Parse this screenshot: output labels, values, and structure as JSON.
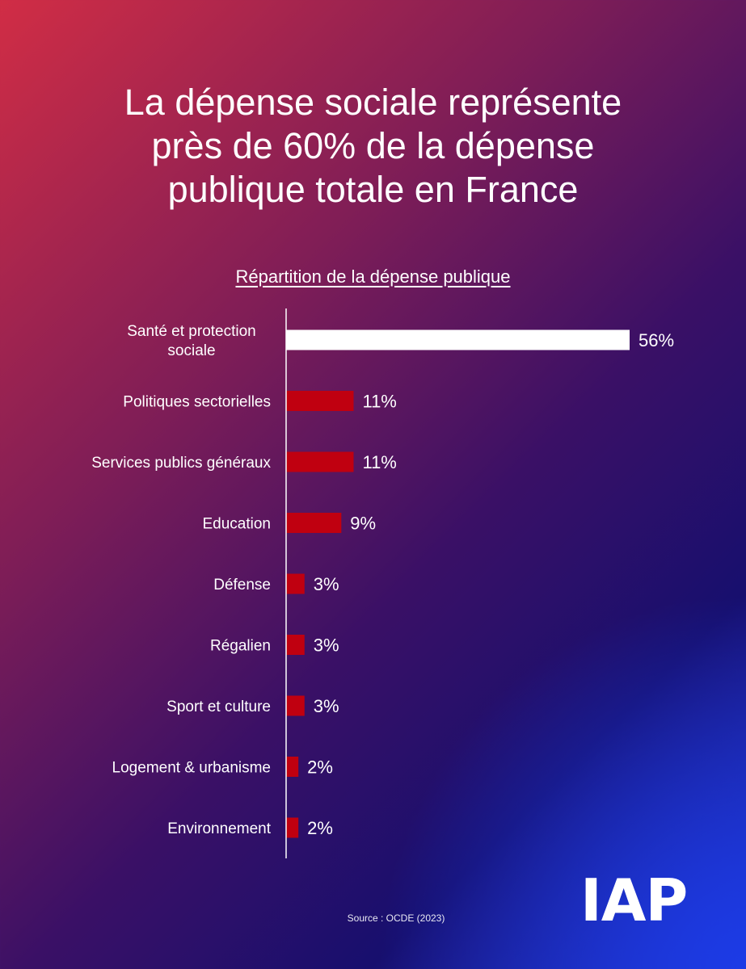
{
  "title": "La dépense sociale représente\nprès de 60% de la dépense\npublique totale en France",
  "source": "Source : OCDE (2023)",
  "logo_text": "IAP",
  "colors": {
    "highlight_bar": "#ffffff",
    "bar": "#c00010",
    "axis": "#ffffff",
    "text": "#ffffff"
  },
  "chart_data": {
    "type": "bar",
    "orientation": "horizontal",
    "title": "Répartition de la dépense publique",
    "categories": [
      "Santé et protection sociale",
      "Politiques sectorielles",
      "Services publics généraux",
      "Education",
      "Défense",
      "Régalien",
      "Sport et culture",
      "Logement & urbanisme",
      "Environnement"
    ],
    "category_lines": [
      [
        "Santé et protection",
        "sociale"
      ],
      [
        "Politiques sectorielles"
      ],
      [
        "Services publics généraux"
      ],
      [
        "Education"
      ],
      [
        "Défense"
      ],
      [
        "Régalien"
      ],
      [
        "Sport et culture"
      ],
      [
        "Logement & urbanisme"
      ],
      [
        "Environnement"
      ]
    ],
    "values": [
      56,
      11,
      11,
      9,
      3,
      3,
      3,
      2,
      2
    ],
    "value_labels": [
      "56%",
      "11%",
      "11%",
      "9%",
      "3%",
      "3%",
      "3%",
      "2%",
      "2%"
    ],
    "highlight_index": 0,
    "xlim": [
      0,
      56
    ],
    "unit": "%",
    "grid": false
  }
}
